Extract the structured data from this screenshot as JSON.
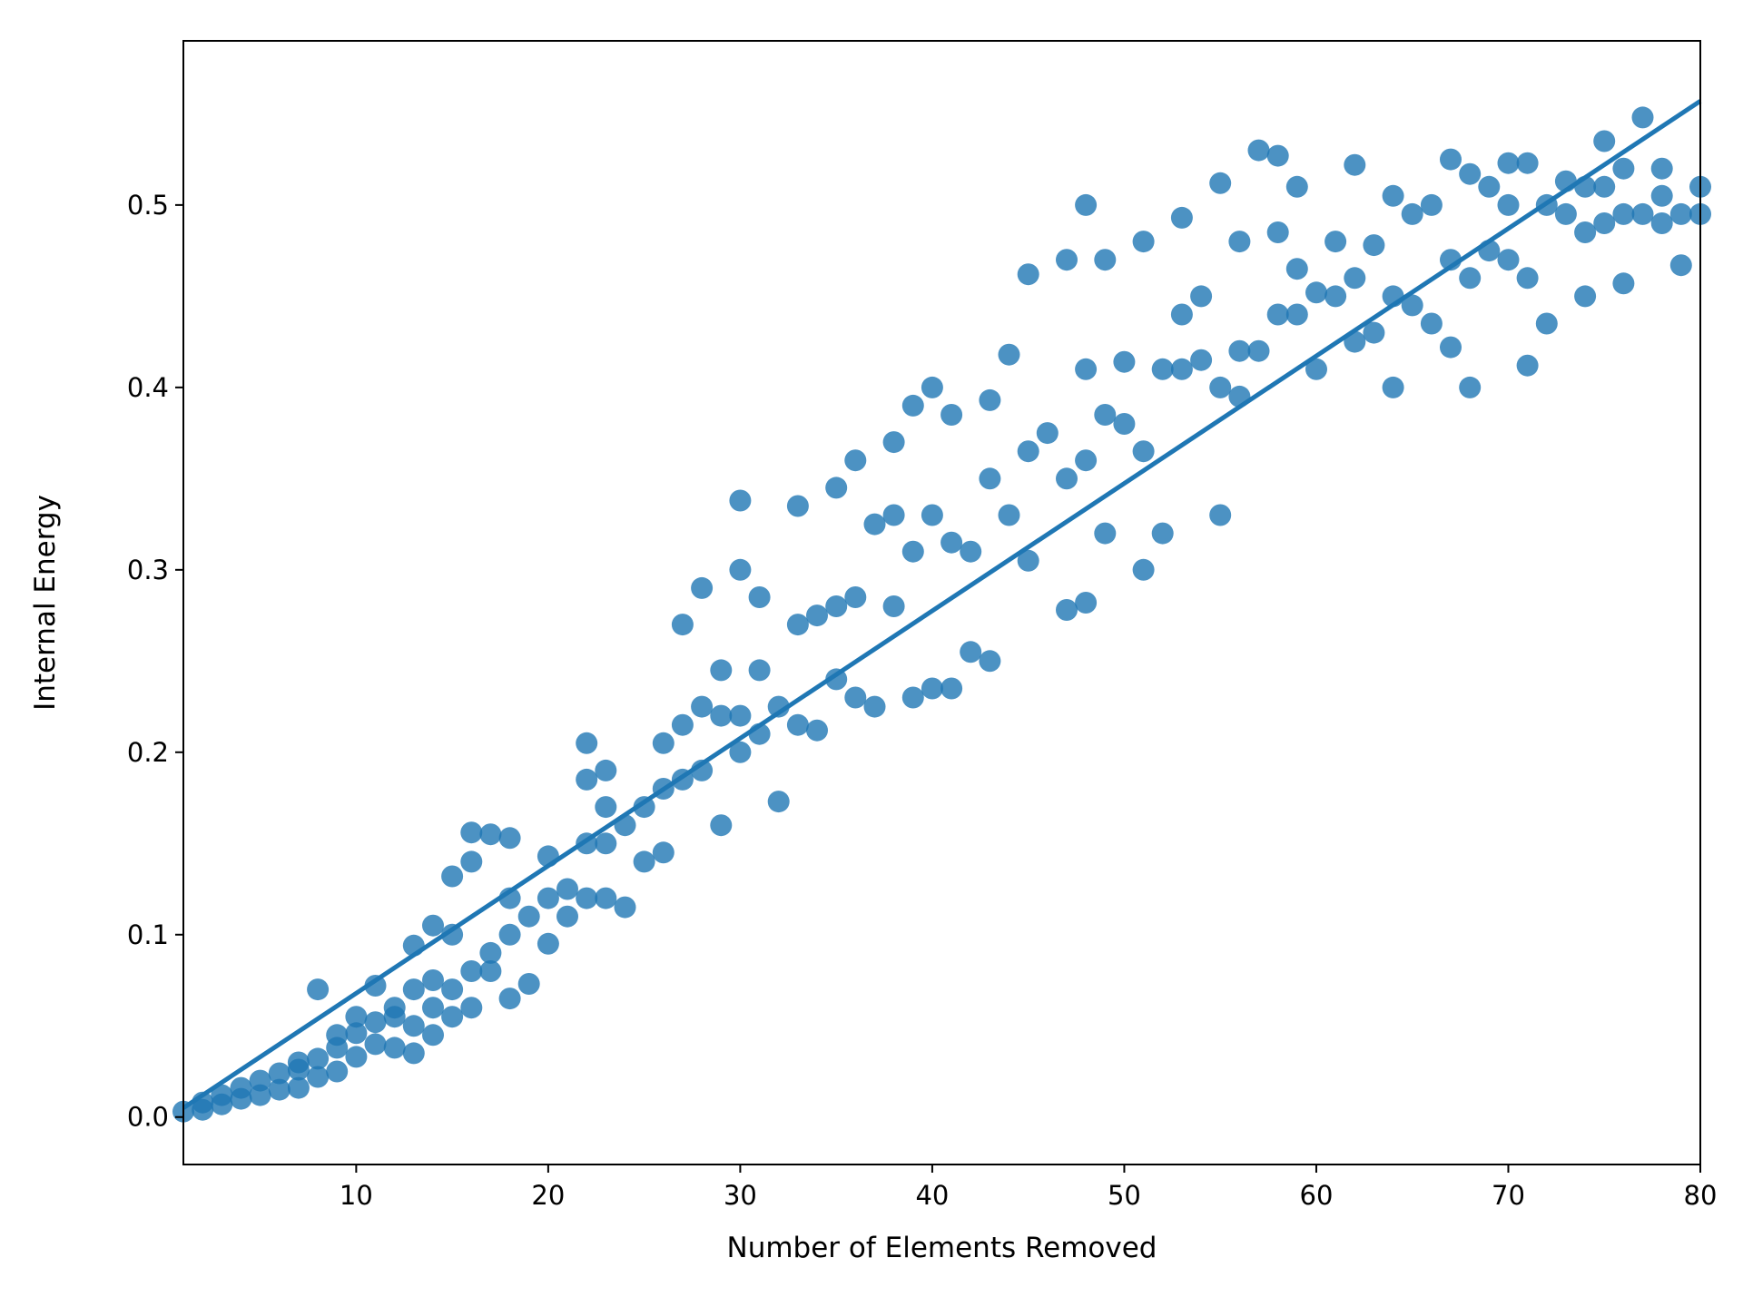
{
  "chart_data": {
    "type": "scatter",
    "title": "",
    "xlabel": "Number of Elements Removed",
    "ylabel": "Internal Energy",
    "xlim": [
      1,
      80
    ],
    "ylim": [
      -0.026,
      0.59
    ],
    "xticks": [
      10,
      20,
      30,
      40,
      50,
      60,
      70,
      80
    ],
    "xtick_labels": [
      "10",
      "20",
      "30",
      "40",
      "50",
      "60",
      "70",
      "80"
    ],
    "yticks": [
      0.0,
      0.1,
      0.2,
      0.3,
      0.4,
      0.5
    ],
    "ytick_labels": [
      "0.0",
      "0.1",
      "0.2",
      "0.3",
      "0.4",
      "0.5"
    ],
    "grid": false,
    "legend": "none",
    "colors": {
      "points": "#1f77b4",
      "line": "#1f77b4"
    },
    "regression": {
      "x": [
        1,
        80
      ],
      "y": [
        0.005,
        0.557
      ]
    },
    "series": [
      {
        "x": [
          1,
          2,
          2,
          3,
          3,
          4,
          4,
          5,
          5,
          6,
          6,
          7,
          7,
          7,
          8,
          8,
          8,
          9,
          9,
          9,
          10,
          10,
          10,
          11,
          11,
          11,
          12,
          12,
          12,
          13,
          13,
          13,
          13,
          14,
          14,
          14,
          14,
          15,
          15,
          15,
          15,
          16,
          16,
          16,
          16,
          17,
          17,
          17,
          18,
          18,
          18,
          18,
          19,
          19,
          20,
          20,
          20,
          21,
          21,
          22,
          22,
          22,
          22,
          23,
          23,
          23,
          23,
          24,
          24,
          25,
          25,
          26,
          26,
          26,
          27,
          27,
          27,
          28,
          28,
          28,
          29,
          29,
          29,
          30,
          30,
          30,
          30,
          31,
          31,
          31,
          32,
          32,
          33,
          33,
          33,
          34,
          34,
          35,
          35,
          35,
          36,
          36,
          36,
          37,
          37,
          38,
          38,
          38,
          39,
          39,
          39,
          40,
          40,
          40,
          41,
          41,
          41,
          42,
          42,
          43,
          43,
          43,
          44,
          44,
          45,
          45,
          45,
          46,
          47,
          47,
          47,
          48,
          48,
          48,
          48,
          49,
          49,
          49,
          50,
          50,
          51,
          51,
          51,
          52,
          52,
          53,
          53,
          53,
          54,
          54,
          55,
          55,
          55,
          56,
          56,
          56,
          57,
          57,
          58,
          58,
          58,
          59,
          59,
          59,
          60,
          60,
          61,
          61,
          62,
          62,
          62,
          63,
          63,
          64,
          64,
          64,
          65,
          65,
          66,
          66,
          67,
          67,
          67,
          68,
          68,
          68,
          69,
          69,
          70,
          70,
          70,
          71,
          71,
          71,
          72,
          72,
          73,
          73,
          74,
          74,
          74,
          75,
          75,
          75,
          76,
          76,
          76,
          77,
          77,
          78,
          78,
          78,
          79,
          79,
          80,
          80
        ],
        "y": [
          0.003,
          0.004,
          0.008,
          0.007,
          0.012,
          0.01,
          0.016,
          0.012,
          0.02,
          0.015,
          0.024,
          0.016,
          0.026,
          0.03,
          0.022,
          0.032,
          0.07,
          0.025,
          0.038,
          0.045,
          0.033,
          0.046,
          0.055,
          0.04,
          0.052,
          0.072,
          0.038,
          0.055,
          0.06,
          0.035,
          0.05,
          0.07,
          0.094,
          0.045,
          0.06,
          0.075,
          0.105,
          0.055,
          0.07,
          0.1,
          0.132,
          0.06,
          0.08,
          0.14,
          0.156,
          0.08,
          0.09,
          0.155,
          0.065,
          0.1,
          0.12,
          0.153,
          0.073,
          0.11,
          0.095,
          0.12,
          0.143,
          0.11,
          0.125,
          0.12,
          0.15,
          0.185,
          0.205,
          0.12,
          0.15,
          0.17,
          0.19,
          0.115,
          0.16,
          0.14,
          0.17,
          0.145,
          0.18,
          0.205,
          0.185,
          0.215,
          0.27,
          0.19,
          0.225,
          0.29,
          0.16,
          0.22,
          0.245,
          0.2,
          0.22,
          0.3,
          0.338,
          0.21,
          0.245,
          0.285,
          0.173,
          0.225,
          0.215,
          0.27,
          0.335,
          0.212,
          0.275,
          0.24,
          0.28,
          0.345,
          0.23,
          0.285,
          0.36,
          0.225,
          0.325,
          0.28,
          0.33,
          0.37,
          0.23,
          0.31,
          0.39,
          0.235,
          0.33,
          0.4,
          0.235,
          0.315,
          0.385,
          0.255,
          0.31,
          0.25,
          0.35,
          0.393,
          0.33,
          0.418,
          0.305,
          0.365,
          0.462,
          0.375,
          0.278,
          0.35,
          0.47,
          0.282,
          0.36,
          0.41,
          0.5,
          0.32,
          0.385,
          0.47,
          0.38,
          0.414,
          0.3,
          0.365,
          0.48,
          0.32,
          0.41,
          0.41,
          0.44,
          0.493,
          0.415,
          0.45,
          0.33,
          0.4,
          0.512,
          0.395,
          0.42,
          0.48,
          0.42,
          0.53,
          0.44,
          0.485,
          0.527,
          0.44,
          0.465,
          0.51,
          0.41,
          0.452,
          0.45,
          0.48,
          0.425,
          0.46,
          0.522,
          0.43,
          0.478,
          0.4,
          0.45,
          0.505,
          0.445,
          0.495,
          0.435,
          0.5,
          0.422,
          0.47,
          0.525,
          0.4,
          0.46,
          0.517,
          0.475,
          0.51,
          0.47,
          0.5,
          0.523,
          0.412,
          0.46,
          0.523,
          0.435,
          0.5,
          0.495,
          0.513,
          0.45,
          0.485,
          0.51,
          0.49,
          0.51,
          0.535,
          0.457,
          0.495,
          0.52,
          0.495,
          0.548,
          0.49,
          0.505,
          0.52,
          0.467,
          0.495,
          0.495,
          0.51
        ]
      }
    ]
  }
}
